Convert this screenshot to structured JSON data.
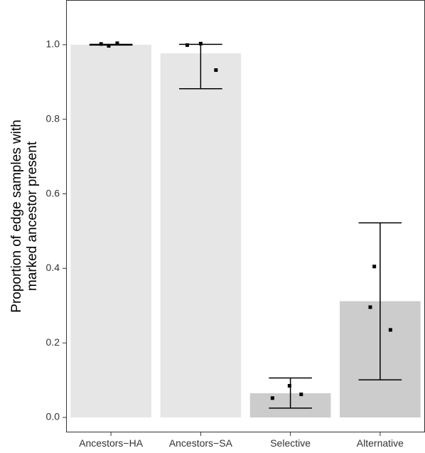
{
  "chart_data": {
    "type": "bar",
    "title": "",
    "xlabel": "",
    "ylabel": [
      "Proportion of edge samples with",
      "marked ancestor present"
    ],
    "ylim": [
      -0.04,
      1.12
    ],
    "yticks": [
      0.0,
      0.2,
      0.4,
      0.6,
      0.8,
      1.0
    ],
    "ytick_labels": [
      "0.0",
      "0.2",
      "0.4",
      "0.6",
      "0.8",
      "1.0"
    ],
    "grid": false,
    "legend": "none",
    "categories": [
      "Ancestors−HA",
      "Ancestors−SA",
      "Selective",
      "Alternative"
    ],
    "values": [
      1.0,
      0.977,
      0.065,
      0.312
    ],
    "bar_colors": [
      "#e6e6e6",
      "#e6e6e6",
      "#cccccc",
      "#cccccc"
    ],
    "error_bars": [
      {
        "low": 0.999,
        "high": 1.001
      },
      {
        "low": 0.882,
        "high": 1.001
      },
      {
        "low": 0.025,
        "high": 0.106
      },
      {
        "low": 0.101,
        "high": 0.522
      }
    ],
    "points": [
      [
        {
          "offset": -0.22,
          "y": 1.002
        },
        {
          "offset": -0.05,
          "y": 0.997
        },
        {
          "offset": 0.14,
          "y": 1.004
        }
      ],
      [
        {
          "offset": -0.3,
          "y": 0.999
        },
        {
          "offset": 0.0,
          "y": 1.003
        },
        {
          "offset": 0.34,
          "y": 0.932
        }
      ],
      [
        {
          "offset": -0.4,
          "y": 0.052
        },
        {
          "offset": -0.02,
          "y": 0.085
        },
        {
          "offset": 0.24,
          "y": 0.062
        }
      ],
      [
        {
          "offset": -0.22,
          "y": 0.296
        },
        {
          "offset": -0.13,
          "y": 0.405
        },
        {
          "offset": 0.23,
          "y": 0.235
        }
      ]
    ],
    "point_color": "#000000",
    "error_bar_color": "#000000"
  }
}
